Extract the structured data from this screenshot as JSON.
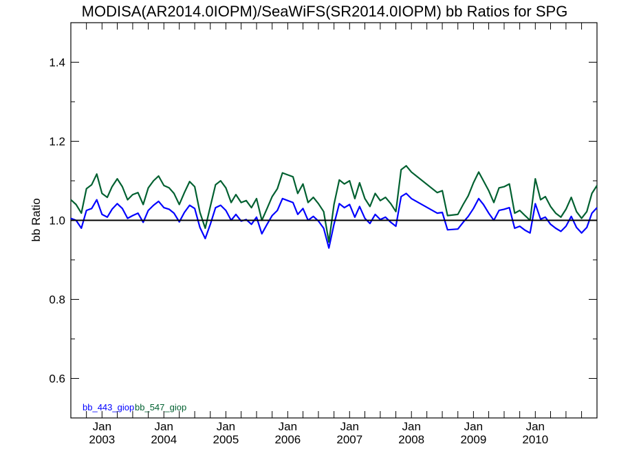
{
  "chart_data": {
    "type": "line",
    "title": "MODISA(AR2014.0IOPM)/SeaWiFS(SR2014.0IOPM)  bb Ratios for SPG",
    "xlabel": "",
    "ylabel": "bb Ratio",
    "ylim": [
      0.5,
      1.5
    ],
    "yticks": [
      0.6,
      0.8,
      1.0,
      1.2,
      1.4
    ],
    "ytick_labels": [
      "0.6",
      "0.8",
      "1.0",
      "1.2",
      "1.4"
    ],
    "xlim": [
      "2002-07-01",
      "2010-12-31"
    ],
    "xticks": [
      {
        "date": "2003-01-01",
        "label_month": "Jan",
        "label_year": "2003"
      },
      {
        "date": "2004-01-01",
        "label_month": "Jan",
        "label_year": "2004"
      },
      {
        "date": "2005-01-01",
        "label_month": "Jan",
        "label_year": "2005"
      },
      {
        "date": "2006-01-01",
        "label_month": "Jan",
        "label_year": "2006"
      },
      {
        "date": "2007-01-01",
        "label_month": "Jan",
        "label_year": "2007"
      },
      {
        "date": "2008-01-01",
        "label_month": "Jan",
        "label_year": "2008"
      },
      {
        "date": "2009-01-01",
        "label_month": "Jan",
        "label_year": "2009"
      },
      {
        "date": "2010-01-01",
        "label_month": "Jan",
        "label_year": "2010"
      }
    ],
    "reference_line": 1.0,
    "legend_placement": "bottom-left",
    "grid": false,
    "series": [
      {
        "name": "bb_443_giop",
        "color": "#0000ff",
        "points": [
          [
            "2002-07-01",
            1.005
          ],
          [
            "2002-08-01",
            1.0
          ],
          [
            "2002-09-01",
            0.98
          ],
          [
            "2002-10-01",
            1.025
          ],
          [
            "2002-11-01",
            1.03
          ],
          [
            "2002-12-01",
            1.052
          ],
          [
            "2003-01-01",
            1.015
          ],
          [
            "2003-02-01",
            1.008
          ],
          [
            "2003-03-01",
            1.028
          ],
          [
            "2003-04-01",
            1.042
          ],
          [
            "2003-05-01",
            1.03
          ],
          [
            "2003-06-01",
            1.005
          ],
          [
            "2003-07-01",
            1.012
          ],
          [
            "2003-08-01",
            1.018
          ],
          [
            "2003-09-01",
            0.995
          ],
          [
            "2003-10-01",
            1.025
          ],
          [
            "2003-11-01",
            1.038
          ],
          [
            "2003-12-01",
            1.048
          ],
          [
            "2004-01-01",
            1.032
          ],
          [
            "2004-02-01",
            1.028
          ],
          [
            "2004-03-01",
            1.018
          ],
          [
            "2004-04-01",
            0.996
          ],
          [
            "2004-05-01",
            1.02
          ],
          [
            "2004-06-01",
            1.038
          ],
          [
            "2004-07-01",
            1.03
          ],
          [
            "2004-08-01",
            0.982
          ],
          [
            "2004-09-01",
            0.954
          ],
          [
            "2004-10-01",
            0.99
          ],
          [
            "2004-11-01",
            1.032
          ],
          [
            "2004-12-01",
            1.038
          ],
          [
            "2005-01-01",
            1.025
          ],
          [
            "2005-02-01",
            1.0
          ],
          [
            "2005-03-01",
            1.015
          ],
          [
            "2005-04-01",
            0.998
          ],
          [
            "2005-05-01",
            1.002
          ],
          [
            "2005-06-01",
            0.99
          ],
          [
            "2005-07-01",
            1.008
          ],
          [
            "2005-08-01",
            0.966
          ],
          [
            "2005-09-01",
            0.99
          ],
          [
            "2005-10-01",
            1.012
          ],
          [
            "2005-11-01",
            1.025
          ],
          [
            "2005-12-01",
            1.055
          ],
          [
            "2006-01-01",
            1.05
          ],
          [
            "2006-02-01",
            1.045
          ],
          [
            "2006-03-01",
            1.015
          ],
          [
            "2006-04-01",
            1.03
          ],
          [
            "2006-05-01",
            1.0
          ],
          [
            "2006-06-01",
            1.01
          ],
          [
            "2006-07-01",
            0.998
          ],
          [
            "2006-08-01",
            0.98
          ],
          [
            "2006-09-01",
            0.93
          ],
          [
            "2006-10-01",
            0.99
          ],
          [
            "2006-11-01",
            1.042
          ],
          [
            "2006-12-01",
            1.032
          ],
          [
            "2007-01-01",
            1.04
          ],
          [
            "2007-02-01",
            1.008
          ],
          [
            "2007-03-01",
            1.035
          ],
          [
            "2007-04-01",
            1.005
          ],
          [
            "2007-05-01",
            0.992
          ],
          [
            "2007-06-01",
            1.015
          ],
          [
            "2007-07-01",
            1.002
          ],
          [
            "2007-08-01",
            1.008
          ],
          [
            "2007-09-01",
            0.995
          ],
          [
            "2007-10-01",
            0.985
          ],
          [
            "2007-11-01",
            1.06
          ],
          [
            "2007-12-01",
            1.068
          ],
          [
            "2008-01-01",
            1.055
          ],
          [
            "2008-06-01",
            1.018
          ],
          [
            "2008-07-01",
            1.02
          ],
          [
            "2008-08-01",
            0.976
          ],
          [
            "2008-10-01",
            0.978
          ],
          [
            "2008-11-01",
            0.995
          ],
          [
            "2008-12-01",
            1.01
          ],
          [
            "2009-01-01",
            1.03
          ],
          [
            "2009-02-01",
            1.055
          ],
          [
            "2009-03-01",
            1.04
          ],
          [
            "2009-04-01",
            1.018
          ],
          [
            "2009-05-01",
            1.0
          ],
          [
            "2009-06-01",
            1.025
          ],
          [
            "2009-07-01",
            1.028
          ],
          [
            "2009-08-01",
            1.032
          ],
          [
            "2009-09-01",
            0.98
          ],
          [
            "2009-10-01",
            0.985
          ],
          [
            "2009-11-01",
            0.975
          ],
          [
            "2009-12-01",
            0.968
          ],
          [
            "2010-01-01",
            1.042
          ],
          [
            "2010-02-01",
            1.003
          ],
          [
            "2010-03-01",
            1.008
          ],
          [
            "2010-04-01",
            0.99
          ],
          [
            "2010-05-01",
            0.98
          ],
          [
            "2010-06-01",
            0.972
          ],
          [
            "2010-07-01",
            0.985
          ],
          [
            "2010-08-01",
            1.01
          ],
          [
            "2010-09-01",
            0.982
          ],
          [
            "2010-10-01",
            0.968
          ],
          [
            "2010-11-01",
            0.982
          ],
          [
            "2010-12-01",
            1.018
          ],
          [
            "2010-12-31",
            1.032
          ]
        ]
      },
      {
        "name": "bb_547_giop",
        "color": "#006030",
        "points": [
          [
            "2002-07-01",
            1.052
          ],
          [
            "2002-08-01",
            1.04
          ],
          [
            "2002-09-01",
            1.018
          ],
          [
            "2002-10-01",
            1.08
          ],
          [
            "2002-11-01",
            1.09
          ],
          [
            "2002-12-01",
            1.117
          ],
          [
            "2003-01-01",
            1.068
          ],
          [
            "2003-02-01",
            1.058
          ],
          [
            "2003-03-01",
            1.085
          ],
          [
            "2003-04-01",
            1.105
          ],
          [
            "2003-05-01",
            1.085
          ],
          [
            "2003-06-01",
            1.052
          ],
          [
            "2003-07-01",
            1.065
          ],
          [
            "2003-08-01",
            1.07
          ],
          [
            "2003-09-01",
            1.04
          ],
          [
            "2003-10-01",
            1.082
          ],
          [
            "2003-11-01",
            1.1
          ],
          [
            "2003-12-01",
            1.112
          ],
          [
            "2004-01-01",
            1.088
          ],
          [
            "2004-02-01",
            1.082
          ],
          [
            "2004-03-01",
            1.068
          ],
          [
            "2004-04-01",
            1.04
          ],
          [
            "2004-05-01",
            1.07
          ],
          [
            "2004-06-01",
            1.098
          ],
          [
            "2004-07-01",
            1.085
          ],
          [
            "2004-08-01",
            1.02
          ],
          [
            "2004-09-01",
            0.98
          ],
          [
            "2004-10-01",
            1.035
          ],
          [
            "2004-11-01",
            1.09
          ],
          [
            "2004-12-01",
            1.1
          ],
          [
            "2005-01-01",
            1.082
          ],
          [
            "2005-02-01",
            1.045
          ],
          [
            "2005-03-01",
            1.065
          ],
          [
            "2005-04-01",
            1.045
          ],
          [
            "2005-05-01",
            1.05
          ],
          [
            "2005-06-01",
            1.032
          ],
          [
            "2005-07-01",
            1.055
          ],
          [
            "2005-08-01",
            1.0
          ],
          [
            "2005-09-01",
            1.03
          ],
          [
            "2005-10-01",
            1.06
          ],
          [
            "2005-11-01",
            1.08
          ],
          [
            "2005-12-01",
            1.12
          ],
          [
            "2006-01-01",
            1.115
          ],
          [
            "2006-02-01",
            1.11
          ],
          [
            "2006-03-01",
            1.068
          ],
          [
            "2006-04-01",
            1.092
          ],
          [
            "2006-05-01",
            1.045
          ],
          [
            "2006-06-01",
            1.058
          ],
          [
            "2006-07-01",
            1.042
          ],
          [
            "2006-08-01",
            1.022
          ],
          [
            "2006-09-01",
            0.945
          ],
          [
            "2006-10-01",
            1.04
          ],
          [
            "2006-11-01",
            1.102
          ],
          [
            "2006-12-01",
            1.092
          ],
          [
            "2007-01-01",
            1.1
          ],
          [
            "2007-02-01",
            1.055
          ],
          [
            "2007-03-01",
            1.095
          ],
          [
            "2007-04-01",
            1.055
          ],
          [
            "2007-05-01",
            1.035
          ],
          [
            "2007-06-01",
            1.068
          ],
          [
            "2007-07-01",
            1.05
          ],
          [
            "2007-08-01",
            1.058
          ],
          [
            "2007-09-01",
            1.042
          ],
          [
            "2007-10-01",
            1.022
          ],
          [
            "2007-11-01",
            1.128
          ],
          [
            "2007-12-01",
            1.138
          ],
          [
            "2008-01-01",
            1.122
          ],
          [
            "2008-06-01",
            1.07
          ],
          [
            "2008-07-01",
            1.075
          ],
          [
            "2008-08-01",
            1.012
          ],
          [
            "2008-10-01",
            1.015
          ],
          [
            "2008-11-01",
            1.04
          ],
          [
            "2008-12-01",
            1.062
          ],
          [
            "2009-01-01",
            1.095
          ],
          [
            "2009-02-01",
            1.122
          ],
          [
            "2009-03-01",
            1.1
          ],
          [
            "2009-04-01",
            1.075
          ],
          [
            "2009-05-01",
            1.045
          ],
          [
            "2009-06-01",
            1.082
          ],
          [
            "2009-07-01",
            1.085
          ],
          [
            "2009-08-01",
            1.092
          ],
          [
            "2009-09-01",
            1.018
          ],
          [
            "2009-10-01",
            1.025
          ],
          [
            "2009-11-01",
            1.012
          ],
          [
            "2009-12-01",
            1.0
          ],
          [
            "2010-01-01",
            1.105
          ],
          [
            "2010-02-01",
            1.052
          ],
          [
            "2010-03-01",
            1.06
          ],
          [
            "2010-04-01",
            1.035
          ],
          [
            "2010-05-01",
            1.018
          ],
          [
            "2010-06-01",
            1.008
          ],
          [
            "2010-07-01",
            1.028
          ],
          [
            "2010-08-01",
            1.058
          ],
          [
            "2010-09-01",
            1.022
          ],
          [
            "2010-10-01",
            1.005
          ],
          [
            "2010-11-01",
            1.022
          ],
          [
            "2010-12-01",
            1.068
          ],
          [
            "2010-12-31",
            1.088
          ]
        ]
      }
    ]
  }
}
